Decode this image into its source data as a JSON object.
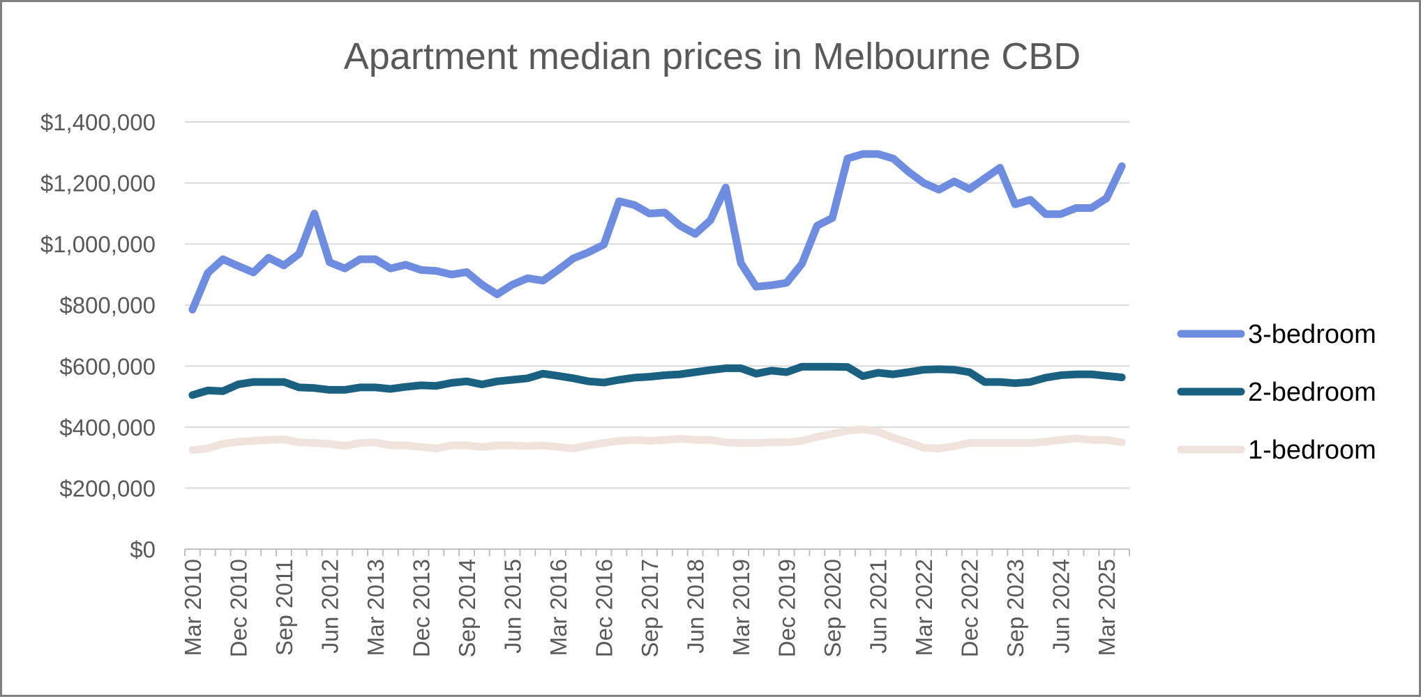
{
  "chart_data": {
    "type": "line",
    "title": "Apartment median prices in Melbourne CBD",
    "xlabel": "",
    "ylabel": "",
    "ylim": [
      0,
      1400000
    ],
    "y_ticks": [
      0,
      200000,
      400000,
      600000,
      800000,
      1000000,
      1200000,
      1400000
    ],
    "y_tick_labels": [
      "$0",
      "$200,000",
      "$400,000",
      "$600,000",
      "$800,000",
      "$1,000,000",
      "$1,200,000",
      "$1,400,000"
    ],
    "x": [
      "Mar 2010",
      "Jun 2010",
      "Sep 2010",
      "Dec 2010",
      "Mar 2011",
      "Jun 2011",
      "Sep 2011",
      "Dec 2011",
      "Mar 2012",
      "Jun 2012",
      "Sep 2012",
      "Dec 2012",
      "Mar 2013",
      "Jun 2013",
      "Sep 2013",
      "Dec 2013",
      "Mar 2014",
      "Jun 2014",
      "Sep 2014",
      "Dec 2014",
      "Mar 2015",
      "Jun 2015",
      "Sep 2015",
      "Dec 2015",
      "Mar 2016",
      "Jun 2016",
      "Sep 2016",
      "Dec 2016",
      "Mar 2017",
      "Jun 2017",
      "Sep 2017",
      "Dec 2017",
      "Mar 2018",
      "Jun 2018",
      "Sep 2018",
      "Dec 2018",
      "Mar 2019",
      "Jun 2019",
      "Sep 2019",
      "Dec 2019",
      "Mar 2020",
      "Jun 2020",
      "Sep 2020",
      "Dec 2020",
      "Mar 2021",
      "Jun 2021",
      "Sep 2021",
      "Dec 2021",
      "Mar 2022",
      "Jun 2022",
      "Sep 2022",
      "Dec 2022",
      "Mar 2023",
      "Jun 2023",
      "Sep 2023",
      "Dec 2023",
      "Mar 2024",
      "Jun 2024",
      "Sep 2024",
      "Dec 2024",
      "Mar 2025",
      "Jun 2025"
    ],
    "x_tick_labels": [
      "Mar 2010",
      "Dec 2010",
      "Sep 2011",
      "Jun 2012",
      "Mar 2013",
      "Dec 2013",
      "Sep 2014",
      "Jun 2015",
      "Mar 2016",
      "Dec 2016",
      "Sep 2017",
      "Jun 2018",
      "Mar 2019",
      "Dec 2019",
      "Sep 2020",
      "Jun 2021",
      "Mar 2022",
      "Dec 2022",
      "Sep 2023",
      "Jun 2024",
      "Mar 2025"
    ],
    "series": [
      {
        "name": "3-bedroom",
        "color": "#6e8ce0",
        "values": [
          785000,
          905000,
          950000,
          928000,
          907000,
          955000,
          930000,
          968000,
          1100000,
          940000,
          920000,
          950000,
          950000,
          920000,
          932000,
          915000,
          912000,
          900000,
          908000,
          867000,
          835000,
          867000,
          888000,
          880000,
          915000,
          953000,
          973000,
          998000,
          1140000,
          1128000,
          1100000,
          1103000,
          1060000,
          1033000,
          1078000,
          1185000,
          937000,
          860000,
          865000,
          873000,
          935000,
          1060000,
          1085000,
          1280000,
          1295000,
          1295000,
          1280000,
          1237000,
          1200000,
          1178000,
          1205000,
          1180000,
          1215000,
          1250000,
          1130000,
          1145000,
          1098000,
          1098000,
          1118000,
          1118000,
          1150000,
          1255000
        ]
      },
      {
        "name": "2-bedroom",
        "color": "#1a6080",
        "values": [
          505000,
          520000,
          518000,
          540000,
          548000,
          548000,
          548000,
          530000,
          528000,
          522000,
          522000,
          530000,
          530000,
          525000,
          532000,
          537000,
          535000,
          545000,
          550000,
          540000,
          550000,
          555000,
          560000,
          575000,
          568000,
          560000,
          550000,
          546000,
          555000,
          562000,
          565000,
          570000,
          573000,
          580000,
          587000,
          593000,
          593000,
          575000,
          585000,
          580000,
          598000,
          598000,
          598000,
          597000,
          567000,
          578000,
          573000,
          580000,
          588000,
          590000,
          588000,
          580000,
          548000,
          548000,
          544000,
          548000,
          562000,
          570000,
          573000,
          573000,
          568000,
          563000
        ]
      },
      {
        "name": "1-bedroom",
        "color": "#efe3dc",
        "values": [
          325000,
          330000,
          345000,
          352000,
          355000,
          358000,
          360000,
          350000,
          348000,
          345000,
          338000,
          348000,
          350000,
          340000,
          340000,
          335000,
          330000,
          340000,
          340000,
          335000,
          340000,
          340000,
          338000,
          340000,
          335000,
          330000,
          340000,
          348000,
          355000,
          358000,
          355000,
          358000,
          362000,
          358000,
          358000,
          350000,
          348000,
          348000,
          350000,
          350000,
          355000,
          368000,
          378000,
          388000,
          393000,
          385000,
          365000,
          350000,
          332000,
          330000,
          337000,
          348000,
          348000,
          348000,
          348000,
          348000,
          352000,
          358000,
          363000,
          358000,
          358000,
          350000
        ]
      }
    ],
    "legend_position": "right",
    "grid": true
  }
}
